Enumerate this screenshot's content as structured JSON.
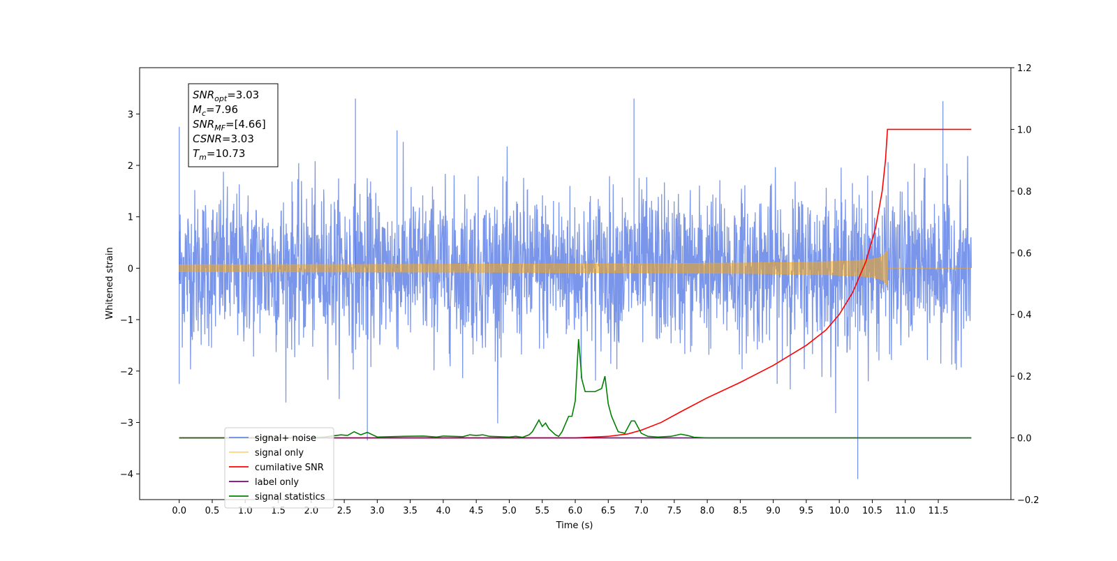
{
  "chart_data": {
    "type": "line",
    "xlabel": "Time (s)",
    "ylabel_left": "Whitened strain",
    "ylabel_right": "",
    "xlim": [
      -0.6,
      12.6
    ],
    "ylim_left": [
      -4.5,
      3.9
    ],
    "ylim_right": [
      -0.2,
      1.2
    ],
    "x_ticks": [
      "0.0",
      "0.5",
      "1.0",
      "1.5",
      "2.0",
      "2.5",
      "3.0",
      "3.5",
      "4.0",
      "4.5",
      "5.0",
      "5.5",
      "6.0",
      "6.5",
      "7.0",
      "7.5",
      "8.0",
      "8.5",
      "9.0",
      "9.5",
      "10.0",
      "10.5",
      "11.0",
      "11.5"
    ],
    "y_ticks_left": [
      3,
      2,
      1,
      0,
      -1,
      -2,
      -3,
      -4
    ],
    "y_ticks_left_labels": [
      "3",
      "2",
      "1",
      "0",
      "−1",
      "−2",
      "−3",
      "−4"
    ],
    "y_ticks_right": [
      1.2,
      1.0,
      0.8,
      0.6,
      0.4,
      0.2,
      0.0,
      -0.2
    ],
    "y_ticks_right_labels": [
      "1.2",
      "1.0",
      "0.8",
      "0.6",
      "0.4",
      "0.2",
      "0.0",
      "−0.2"
    ],
    "grid": false,
    "legend_placement": "lower-left",
    "series": [
      {
        "name": "signal+ noise",
        "axis": "left",
        "color": "#4169e1",
        "x_range": [
          0.0,
          12.0
        ],
        "rms": 0.75,
        "max": 3.3,
        "min": -4.1,
        "notable_spikes": [
          [
            2.67,
            3.3
          ],
          [
            3.3,
            2.68
          ],
          [
            6.89,
            3.3
          ],
          [
            10.28,
            -4.1
          ],
          [
            11.57,
            3.25
          ],
          [
            0.0,
            2.75
          ],
          [
            0.0,
            -2.25
          ],
          [
            2.85,
            -3.35
          ]
        ]
      },
      {
        "name": "signal only",
        "axis": "left",
        "color": "#ffa500",
        "x_range": [
          0.0,
          12.0
        ],
        "chirp_merger_time": 10.73,
        "peak_amplitude": 0.33
      },
      {
        "name": "cumilative SNR",
        "axis": "right",
        "color": "#ff0000",
        "x": [
          0.0,
          6.0,
          6.5,
          6.8,
          7.0,
          7.3,
          7.6,
          8.0,
          8.5,
          9.0,
          9.5,
          9.8,
          10.0,
          10.2,
          10.4,
          10.55,
          10.65,
          10.7,
          10.73,
          11.0,
          12.0
        ],
        "values": [
          0.0,
          0.0,
          0.005,
          0.013,
          0.025,
          0.05,
          0.085,
          0.13,
          0.18,
          0.235,
          0.3,
          0.35,
          0.4,
          0.47,
          0.57,
          0.68,
          0.8,
          0.9,
          1.0,
          1.0,
          1.0
        ]
      },
      {
        "name": "label only",
        "axis": "right",
        "color": "#800080",
        "x": [
          0.0,
          12.0
        ],
        "values": [
          0.0,
          0.0
        ]
      },
      {
        "name": "signal statistics",
        "axis": "right",
        "color": "#008000",
        "x": [
          0.0,
          2.0,
          2.2,
          2.35,
          2.45,
          2.55,
          2.65,
          2.75,
          2.85,
          3.0,
          3.4,
          3.7,
          3.9,
          4.0,
          4.3,
          4.4,
          4.5,
          4.6,
          4.7,
          5.0,
          5.1,
          5.2,
          5.3,
          5.35,
          5.45,
          5.5,
          5.55,
          5.6,
          5.7,
          5.75,
          5.8,
          5.85,
          5.9,
          5.95,
          6.0,
          6.05,
          6.1,
          6.15,
          6.2,
          6.3,
          6.4,
          6.45,
          6.5,
          6.55,
          6.65,
          6.75,
          6.85,
          6.9,
          6.95,
          7.0,
          7.1,
          7.25,
          7.45,
          7.6,
          7.7,
          7.8,
          8.0,
          8.2,
          12.0
        ],
        "values": [
          0.0,
          0.0,
          0.003,
          0.007,
          0.01,
          0.008,
          0.02,
          0.01,
          0.018,
          0.003,
          0.005,
          0.006,
          0.003,
          0.006,
          0.004,
          0.01,
          0.008,
          0.01,
          0.005,
          0.003,
          0.005,
          0.002,
          0.01,
          0.02,
          0.058,
          0.037,
          0.048,
          0.03,
          0.01,
          0.005,
          0.02,
          0.045,
          0.07,
          0.07,
          0.12,
          0.32,
          0.19,
          0.15,
          0.15,
          0.15,
          0.16,
          0.2,
          0.11,
          0.07,
          0.02,
          0.015,
          0.055,
          0.055,
          0.035,
          0.015,
          0.005,
          0.003,
          0.005,
          0.012,
          0.008,
          0.002,
          0.0,
          0.0,
          0.0
        ]
      }
    ],
    "annotations": {
      "infobox": [
        {
          "base": "SNR",
          "sub": "opt",
          "value": "=3.03"
        },
        {
          "base": "M",
          "sub": "c",
          "value": "=7.96"
        },
        {
          "base": "SNR",
          "sub": "MF",
          "value": "=[4.66]"
        },
        {
          "base": "CSNR",
          "sub": "",
          "value": "=3.03"
        },
        {
          "base": "T",
          "sub": "m",
          "value": "=10.73"
        }
      ]
    }
  }
}
